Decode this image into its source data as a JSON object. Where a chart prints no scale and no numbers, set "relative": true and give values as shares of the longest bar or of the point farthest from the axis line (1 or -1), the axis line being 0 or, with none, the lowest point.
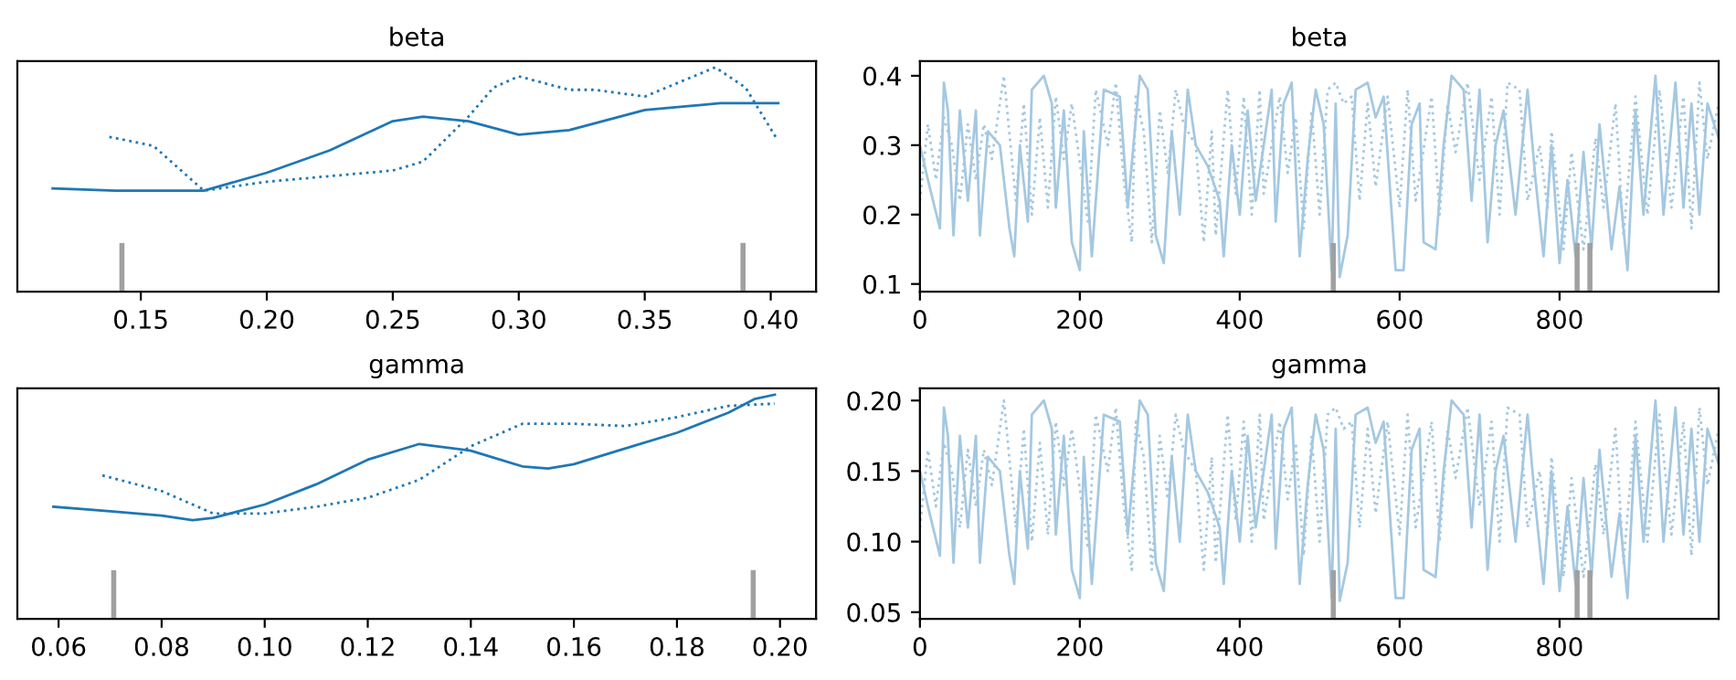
{
  "chart_data": [
    {
      "type": "line",
      "title": "beta",
      "relative": true,
      "tick_labels": "x",
      "grid": false,
      "xlim": [
        0.101,
        0.418
      ],
      "xticks": [
        0.15,
        {
          "value": 0.2,
          "label": "0.20"
        },
        0.25,
        {
          "value": 0.3,
          "label": "0.30"
        },
        0.35,
        {
          "value": 0.4,
          "label": "0.40"
        }
      ],
      "series": [
        {
          "color": "#1f77b4",
          "line_style": "solid",
          "x": [
            0.115,
            0.14,
            0.175,
            0.2,
            0.225,
            0.25,
            0.262,
            0.28,
            0.3,
            0.32,
            0.35,
            0.38,
            0.403
          ],
          "values": [
            0.46,
            0.45,
            0.45,
            0.53,
            0.63,
            0.76,
            0.78,
            0.76,
            0.7,
            0.72,
            0.81,
            0.84,
            0.84
          ]
        },
        {
          "color": "#1f77b4",
          "line_style": "dotted",
          "x": [
            0.1375,
            0.155,
            0.175,
            0.2,
            0.25,
            0.262,
            0.28,
            0.29,
            0.3,
            0.32,
            0.33,
            0.35,
            0.378,
            0.39,
            0.4025
          ],
          "values": [
            0.69,
            0.65,
            0.45,
            0.49,
            0.54,
            0.58,
            0.78,
            0.91,
            0.96,
            0.9,
            0.9,
            0.87,
            1.0,
            0.91,
            0.68
          ]
        }
      ],
      "ref_lines": [
        {
          "axis": "x",
          "value": 0.1425,
          "color": "#a0a0a0"
        },
        {
          "axis": "x",
          "value": 0.389,
          "color": "#a0a0a0"
        }
      ]
    },
    {
      "type": "line",
      "title": "beta",
      "grid": false,
      "xlim": [
        0,
        999
      ],
      "xticks": [
        0,
        200,
        400,
        600,
        800
      ],
      "ylim": [
        0.089,
        0.421
      ],
      "yticks": [
        0.1,
        0.2,
        0.3,
        0.4
      ],
      "series": [
        {
          "color": "#a5c8e1",
          "line_style": "solid",
          "x": [
            0,
            10,
            25,
            30,
            35,
            42,
            50,
            60,
            70,
            75,
            85,
            100,
            112,
            118,
            125,
            135,
            140,
            155,
            165,
            170,
            180,
            190,
            200,
            205,
            215,
            230,
            250,
            260,
            275,
            285,
            295,
            305,
            315,
            325,
            335,
            345,
            360,
            375,
            380,
            390,
            400,
            410,
            420,
            440,
            445,
            455,
            465,
            475,
            485,
            495,
            505,
            515,
            520,
            525,
            535,
            545,
            560,
            570,
            580,
            595,
            605,
            615,
            625,
            630,
            645,
            655,
            665,
            680,
            690,
            700,
            710,
            720,
            730,
            745,
            760,
            770,
            780,
            790,
            800,
            810,
            820,
            830,
            840,
            850,
            865,
            875,
            885,
            895,
            905,
            920,
            930,
            945,
            955,
            965,
            975,
            985,
            999
          ],
          "values": [
            0.3,
            0.25,
            0.18,
            0.39,
            0.35,
            0.17,
            0.35,
            0.22,
            0.35,
            0.17,
            0.32,
            0.3,
            0.18,
            0.14,
            0.3,
            0.19,
            0.38,
            0.4,
            0.36,
            0.21,
            0.35,
            0.16,
            0.12,
            0.32,
            0.14,
            0.38,
            0.37,
            0.21,
            0.4,
            0.38,
            0.17,
            0.13,
            0.32,
            0.2,
            0.38,
            0.3,
            0.27,
            0.22,
            0.14,
            0.3,
            0.2,
            0.35,
            0.22,
            0.38,
            0.19,
            0.36,
            0.39,
            0.14,
            0.28,
            0.38,
            0.33,
            0.12,
            0.36,
            0.11,
            0.17,
            0.38,
            0.39,
            0.34,
            0.37,
            0.12,
            0.12,
            0.33,
            0.36,
            0.16,
            0.15,
            0.3,
            0.4,
            0.38,
            0.22,
            0.38,
            0.16,
            0.3,
            0.35,
            0.2,
            0.38,
            0.25,
            0.14,
            0.3,
            0.13,
            0.25,
            0.14,
            0.29,
            0.15,
            0.33,
            0.15,
            0.24,
            0.12,
            0.35,
            0.2,
            0.4,
            0.2,
            0.39,
            0.21,
            0.36,
            0.2,
            0.36,
            0.31
          ]
        },
        {
          "color": "#a5c8e1",
          "line_style": "dotted",
          "x": [
            0,
            10,
            20,
            30,
            40,
            50,
            60,
            70,
            80,
            90,
            105,
            120,
            130,
            140,
            150,
            160,
            170,
            180,
            190,
            210,
            220,
            235,
            245,
            255,
            265,
            270,
            280,
            290,
            300,
            310,
            320,
            330,
            345,
            355,
            365,
            370,
            385,
            395,
            405,
            415,
            425,
            430,
            450,
            460,
            470,
            480,
            490,
            500,
            510,
            520,
            530,
            540,
            550,
            560,
            570,
            585,
            600,
            610,
            620,
            640,
            650,
            660,
            670,
            685,
            700,
            715,
            725,
            735,
            750,
            760,
            775,
            785,
            790,
            805,
            815,
            830,
            845,
            855,
            870,
            880,
            895,
            910,
            925,
            940,
            955,
            965,
            975,
            985,
            999
          ],
          "values": [
            0.22,
            0.33,
            0.25,
            0.34,
            0.3,
            0.22,
            0.33,
            0.25,
            0.33,
            0.28,
            0.4,
            0.22,
            0.36,
            0.2,
            0.34,
            0.21,
            0.37,
            0.28,
            0.36,
            0.19,
            0.38,
            0.3,
            0.39,
            0.25,
            0.16,
            0.37,
            0.32,
            0.16,
            0.35,
            0.26,
            0.38,
            0.33,
            0.3,
            0.16,
            0.32,
            0.17,
            0.38,
            0.23,
            0.37,
            0.2,
            0.38,
            0.23,
            0.37,
            0.26,
            0.34,
            0.18,
            0.35,
            0.2,
            0.38,
            0.39,
            0.36,
            0.37,
            0.22,
            0.36,
            0.24,
            0.37,
            0.21,
            0.38,
            0.22,
            0.37,
            0.2,
            0.36,
            0.29,
            0.39,
            0.25,
            0.37,
            0.2,
            0.39,
            0.38,
            0.22,
            0.3,
            0.21,
            0.32,
            0.15,
            0.29,
            0.15,
            0.31,
            0.21,
            0.36,
            0.17,
            0.37,
            0.2,
            0.38,
            0.21,
            0.37,
            0.18,
            0.39,
            0.28,
            0.36
          ]
        }
      ],
      "ref_lines": [
        {
          "axis": "x",
          "value": 517,
          "color": "#a0a0a0"
        },
        {
          "axis": "x",
          "value": 822,
          "color": "#a0a0a0"
        },
        {
          "axis": "x",
          "value": 838,
          "color": "#a0a0a0"
        }
      ]
    },
    {
      "type": "line",
      "title": "gamma",
      "relative": true,
      "tick_labels": "x",
      "grid": false,
      "xlim": [
        0.052,
        0.207
      ],
      "xticks": [
        0.06,
        0.08,
        {
          "value": 0.1,
          "label": "0.10"
        },
        0.12,
        0.14,
        0.16,
        0.18,
        {
          "value": 0.2,
          "label": "0.20"
        }
      ],
      "series": [
        {
          "color": "#1f77b4",
          "line_style": "solid",
          "x": [
            0.059,
            0.07,
            0.08,
            0.086,
            0.09,
            0.1,
            0.11,
            0.12,
            0.13,
            0.14,
            0.15,
            0.155,
            0.16,
            0.17,
            0.18,
            0.19,
            0.195,
            0.199
          ],
          "values": [
            0.5,
            0.48,
            0.46,
            0.44,
            0.45,
            0.51,
            0.6,
            0.71,
            0.78,
            0.75,
            0.68,
            0.67,
            0.69,
            0.76,
            0.83,
            0.92,
            0.98,
            1.0
          ]
        },
        {
          "color": "#1f77b4",
          "line_style": "dotted",
          "x": [
            0.0685,
            0.08,
            0.09,
            0.1,
            0.11,
            0.12,
            0.13,
            0.14,
            0.15,
            0.16,
            0.17,
            0.18,
            0.19,
            0.199
          ],
          "values": [
            0.64,
            0.57,
            0.47,
            0.47,
            0.5,
            0.54,
            0.62,
            0.77,
            0.87,
            0.87,
            0.86,
            0.9,
            0.95,
            0.96
          ]
        }
      ],
      "ref_lines": [
        {
          "axis": "x",
          "value": 0.0707,
          "color": "#a0a0a0"
        },
        {
          "axis": "x",
          "value": 0.1948,
          "color": "#a0a0a0"
        }
      ]
    },
    {
      "type": "line",
      "title": "gamma",
      "grid": false,
      "xlim": [
        0,
        999
      ],
      "xticks": [
        0,
        200,
        400,
        600,
        800
      ],
      "ylim": [
        0.0453,
        0.2086
      ],
      "yticks": [
        {
          "value": 0.05,
          "label": "0.05"
        },
        {
          "value": 0.1,
          "label": "0.10"
        },
        {
          "value": 0.15,
          "label": "0.15"
        },
        {
          "value": 0.2,
          "label": "0.20"
        }
      ],
      "series": [
        {
          "color": "#a5c8e1",
          "line_style": "solid",
          "x": [
            0,
            10,
            25,
            30,
            35,
            42,
            50,
            60,
            70,
            75,
            85,
            100,
            112,
            118,
            125,
            135,
            140,
            155,
            165,
            170,
            180,
            190,
            200,
            205,
            215,
            230,
            250,
            260,
            275,
            285,
            295,
            305,
            315,
            325,
            335,
            345,
            360,
            375,
            380,
            390,
            400,
            410,
            420,
            440,
            445,
            455,
            465,
            475,
            485,
            495,
            505,
            515,
            520,
            525,
            535,
            545,
            560,
            570,
            580,
            595,
            605,
            615,
            625,
            630,
            645,
            655,
            665,
            680,
            690,
            700,
            710,
            720,
            730,
            745,
            760,
            770,
            780,
            790,
            800,
            810,
            820,
            830,
            840,
            850,
            865,
            875,
            885,
            895,
            905,
            920,
            930,
            945,
            955,
            965,
            975,
            985,
            999
          ],
          "values": [
            0.15,
            0.125,
            0.09,
            0.195,
            0.175,
            0.085,
            0.175,
            0.11,
            0.175,
            0.085,
            0.16,
            0.15,
            0.09,
            0.07,
            0.15,
            0.095,
            0.19,
            0.2,
            0.18,
            0.105,
            0.175,
            0.08,
            0.06,
            0.16,
            0.07,
            0.19,
            0.185,
            0.105,
            0.2,
            0.19,
            0.085,
            0.065,
            0.16,
            0.1,
            0.19,
            0.15,
            0.135,
            0.11,
            0.07,
            0.15,
            0.1,
            0.175,
            0.11,
            0.19,
            0.095,
            0.18,
            0.195,
            0.07,
            0.14,
            0.19,
            0.165,
            0.06,
            0.18,
            0.058,
            0.085,
            0.19,
            0.195,
            0.17,
            0.185,
            0.06,
            0.06,
            0.165,
            0.18,
            0.08,
            0.075,
            0.15,
            0.2,
            0.19,
            0.11,
            0.19,
            0.08,
            0.15,
            0.175,
            0.1,
            0.19,
            0.125,
            0.07,
            0.15,
            0.065,
            0.125,
            0.07,
            0.145,
            0.075,
            0.165,
            0.075,
            0.12,
            0.06,
            0.175,
            0.1,
            0.2,
            0.1,
            0.195,
            0.105,
            0.18,
            0.1,
            0.18,
            0.155
          ]
        },
        {
          "color": "#a5c8e1",
          "line_style": "dotted",
          "x": [
            0,
            10,
            20,
            30,
            40,
            50,
            60,
            70,
            80,
            90,
            105,
            120,
            130,
            140,
            150,
            160,
            170,
            180,
            190,
            210,
            220,
            235,
            245,
            255,
            265,
            270,
            280,
            290,
            300,
            310,
            320,
            330,
            345,
            355,
            365,
            370,
            385,
            395,
            405,
            415,
            425,
            430,
            450,
            460,
            470,
            480,
            490,
            500,
            510,
            520,
            530,
            540,
            550,
            560,
            570,
            585,
            600,
            610,
            620,
            640,
            650,
            660,
            670,
            685,
            700,
            715,
            725,
            735,
            750,
            760,
            775,
            785,
            790,
            805,
            815,
            830,
            845,
            855,
            870,
            880,
            895,
            910,
            925,
            940,
            955,
            965,
            975,
            985,
            999
          ],
          "values": [
            0.11,
            0.165,
            0.125,
            0.17,
            0.15,
            0.11,
            0.165,
            0.125,
            0.165,
            0.14,
            0.2,
            0.11,
            0.18,
            0.1,
            0.17,
            0.105,
            0.185,
            0.14,
            0.18,
            0.095,
            0.19,
            0.15,
            0.195,
            0.125,
            0.08,
            0.185,
            0.16,
            0.08,
            0.175,
            0.13,
            0.19,
            0.165,
            0.15,
            0.08,
            0.16,
            0.085,
            0.19,
            0.115,
            0.185,
            0.1,
            0.19,
            0.115,
            0.185,
            0.13,
            0.17,
            0.09,
            0.175,
            0.1,
            0.19,
            0.195,
            0.18,
            0.185,
            0.11,
            0.18,
            0.12,
            0.185,
            0.105,
            0.19,
            0.11,
            0.185,
            0.1,
            0.18,
            0.145,
            0.195,
            0.125,
            0.185,
            0.1,
            0.195,
            0.19,
            0.11,
            0.15,
            0.105,
            0.16,
            0.075,
            0.145,
            0.075,
            0.155,
            0.105,
            0.18,
            0.085,
            0.185,
            0.1,
            0.19,
            0.105,
            0.185,
            0.09,
            0.195,
            0.14,
            0.18
          ]
        }
      ],
      "ref_lines": [
        {
          "axis": "x",
          "value": 517,
          "color": "#a0a0a0"
        },
        {
          "axis": "x",
          "value": 822,
          "color": "#a0a0a0"
        },
        {
          "axis": "x",
          "value": 838,
          "color": "#a0a0a0"
        }
      ]
    }
  ]
}
